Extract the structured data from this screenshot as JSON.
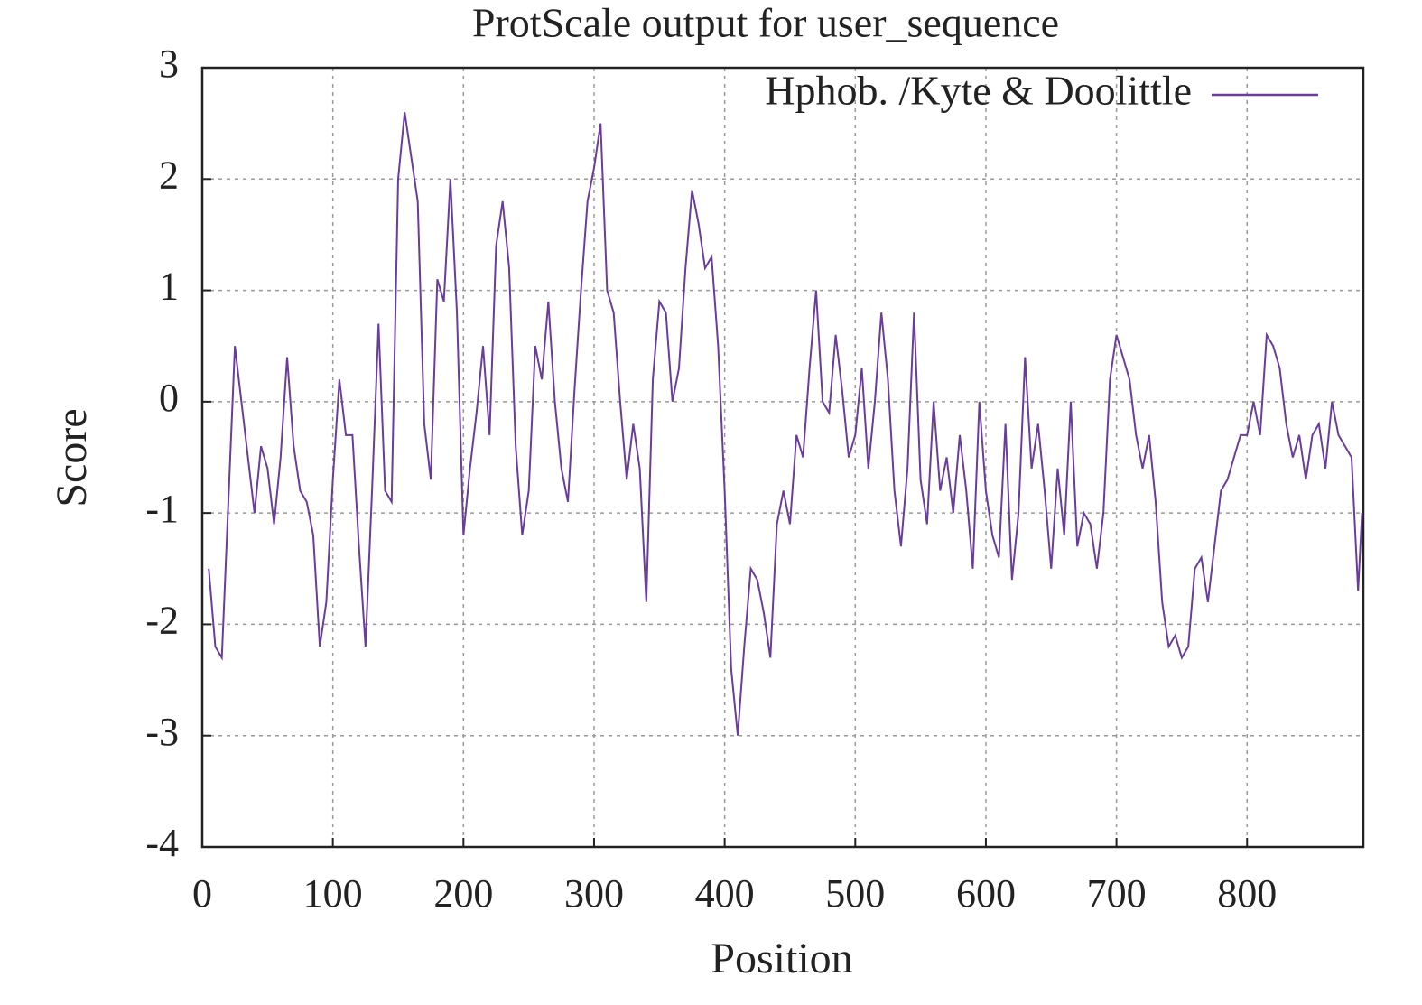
{
  "chart_data": {
    "type": "line",
    "title": "ProtScale output for user_sequence",
    "x_label": "Position",
    "y_label": "Score",
    "xlim": [
      0,
      889
    ],
    "ylim": [
      -4,
      3
    ],
    "xticks": [
      0,
      100,
      200,
      300,
      400,
      500,
      600,
      700,
      800
    ],
    "yticks": [
      -4,
      -3,
      -2,
      -1,
      0,
      1,
      2,
      3
    ],
    "grid": true,
    "legend": "upper right",
    "x": [
      5,
      10,
      15,
      20,
      25,
      30,
      35,
      40,
      45,
      50,
      55,
      60,
      65,
      70,
      75,
      80,
      85,
      90,
      95,
      100,
      105,
      110,
      115,
      120,
      125,
      130,
      135,
      140,
      145,
      150,
      155,
      160,
      165,
      170,
      175,
      180,
      185,
      190,
      195,
      200,
      205,
      210,
      215,
      220,
      225,
      230,
      235,
      240,
      245,
      250,
      255,
      260,
      265,
      270,
      275,
      280,
      285,
      290,
      295,
      300,
      305,
      310,
      315,
      320,
      325,
      330,
      335,
      340,
      345,
      350,
      355,
      360,
      365,
      370,
      375,
      380,
      385,
      390,
      395,
      400,
      405,
      410,
      415,
      420,
      425,
      430,
      435,
      440,
      445,
      450,
      455,
      460,
      465,
      470,
      475,
      480,
      485,
      490,
      495,
      500,
      505,
      510,
      515,
      520,
      525,
      530,
      535,
      540,
      545,
      550,
      555,
      560,
      565,
      570,
      575,
      580,
      585,
      590,
      595,
      600,
      605,
      610,
      615,
      620,
      625,
      630,
      635,
      640,
      645,
      650,
      655,
      660,
      665,
      670,
      675,
      680,
      685,
      690,
      695,
      700,
      705,
      710,
      715,
      720,
      725,
      730,
      735,
      740,
      745,
      750,
      755,
      760,
      765,
      770,
      775,
      780,
      785,
      790,
      795,
      800,
      805,
      810,
      815,
      820,
      825,
      830,
      835,
      840,
      845,
      850,
      855,
      860,
      865,
      870,
      875,
      880,
      885,
      888
    ],
    "series": [
      {
        "name": "Hphob. /Kyte & Doolittle",
        "color": "#6a3d9a",
        "values": [
          -1.5,
          -2.2,
          -2.3,
          -0.9,
          0.5,
          0.0,
          -0.5,
          -1.0,
          -0.4,
          -0.6,
          -1.1,
          -0.5,
          0.4,
          -0.4,
          -0.8,
          -0.9,
          -1.2,
          -2.2,
          -1.8,
          -0.7,
          0.2,
          -0.3,
          -0.3,
          -1.3,
          -2.2,
          -0.8,
          0.7,
          -0.8,
          -0.9,
          2.0,
          2.6,
          2.2,
          1.8,
          -0.2,
          -0.7,
          1.1,
          0.9,
          2.0,
          0.8,
          -1.2,
          -0.6,
          -0.1,
          0.5,
          -0.3,
          1.4,
          1.8,
          1.2,
          -0.4,
          -1.2,
          -0.8,
          0.5,
          0.2,
          0.9,
          0.0,
          -0.6,
          -0.9,
          0.1,
          1.0,
          1.8,
          2.1,
          2.5,
          1.0,
          0.8,
          0.0,
          -0.7,
          -0.2,
          -0.6,
          -1.8,
          0.2,
          0.9,
          0.8,
          0.0,
          0.3,
          1.2,
          1.9,
          1.6,
          1.2,
          1.3,
          0.5,
          -0.8,
          -2.4,
          -3.0,
          -2.2,
          -1.5,
          -1.6,
          -1.9,
          -2.3,
          -1.1,
          -0.8,
          -1.1,
          -0.3,
          -0.5,
          0.3,
          1.0,
          0.0,
          -0.1,
          0.6,
          0.1,
          -0.5,
          -0.3,
          0.3,
          -0.6,
          0.0,
          0.8,
          0.2,
          -0.8,
          -1.3,
          -0.6,
          0.8,
          -0.7,
          -1.1,
          0.0,
          -0.8,
          -0.5,
          -1.0,
          -0.3,
          -0.8,
          -1.5,
          0.0,
          -0.8,
          -1.2,
          -1.4,
          -0.2,
          -1.6,
          -1.0,
          0.4,
          -0.6,
          -0.2,
          -0.8,
          -1.5,
          -0.6,
          -1.2,
          0.0,
          -1.3,
          -1.0,
          -1.1,
          -1.5,
          -1.0,
          0.2,
          0.6,
          0.4,
          0.2,
          -0.3,
          -0.6,
          -0.3,
          -0.9,
          -1.8,
          -2.2,
          -2.1,
          -2.3,
          -2.2,
          -1.5,
          -1.4,
          -1.8,
          -1.3,
          -0.8,
          -0.7,
          -0.5,
          -0.3,
          -0.3,
          0.0,
          -0.3,
          0.6,
          0.5,
          0.3,
          -0.2,
          -0.5,
          -0.3,
          -0.7,
          -0.3,
          -0.2,
          -0.6,
          0.0,
          -0.3,
          -0.4,
          -0.5,
          -1.7,
          -1.0
        ]
      }
    ]
  }
}
